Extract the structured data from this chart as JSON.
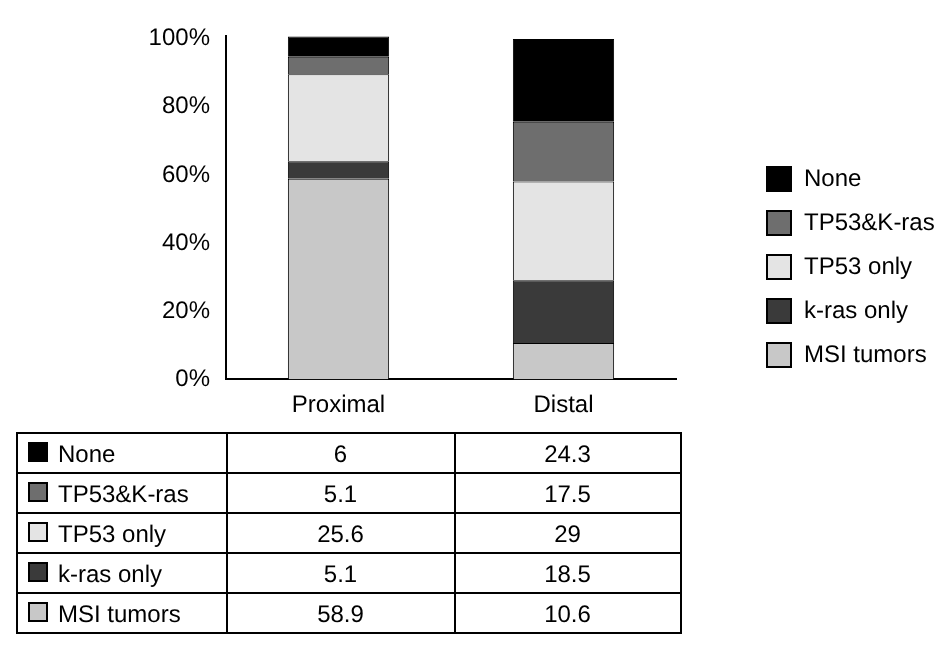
{
  "chart_data": {
    "type": "bar",
    "stacked": true,
    "categories": [
      "Proximal",
      "Distal"
    ],
    "series": [
      {
        "name": "MSI tumors",
        "color": "#c8c8c8",
        "values": [
          58.9,
          10.6
        ]
      },
      {
        "name": "k-ras only",
        "color": "#3a3a3a",
        "values": [
          5.1,
          18.5
        ]
      },
      {
        "name": "TP53 only",
        "color": "#e4e4e4",
        "values": [
          25.6,
          29
        ]
      },
      {
        "name": "TP53&K-ras",
        "color": "#6e6e6e",
        "values": [
          5.1,
          17.5
        ]
      },
      {
        "name": "None",
        "color": "#000000",
        "values": [
          6,
          24.3
        ]
      }
    ],
    "ylim": [
      0,
      100.7
    ],
    "yticks": [
      {
        "value": 0,
        "label": "0%"
      },
      {
        "value": 20,
        "label": "20%"
      },
      {
        "value": 40,
        "label": "40%"
      },
      {
        "value": 60,
        "label": "60%"
      },
      {
        "value": 80,
        "label": "80%"
      },
      {
        "value": 100,
        "label": "100%"
      }
    ],
    "grid": false,
    "legend": "right",
    "data_labels": true
  }
}
